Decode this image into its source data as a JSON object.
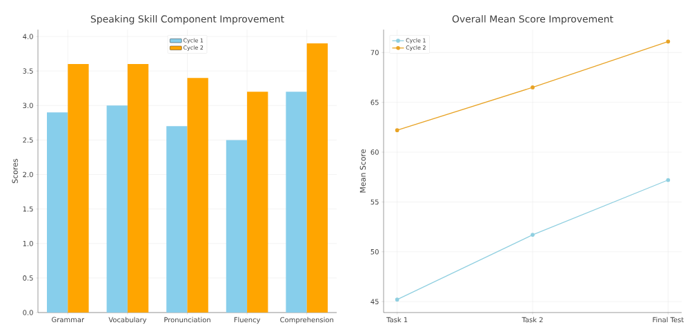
{
  "chart_data": [
    {
      "type": "bar",
      "title": "Speaking Skill Component Improvement",
      "ylabel": "Scores",
      "categories": [
        "Grammar",
        "Vocabulary",
        "Pronunciation",
        "Fluency",
        "Comprehension"
      ],
      "series": [
        {
          "name": "Cycle 1",
          "color": "#87ceeb",
          "values": [
            2.9,
            3.0,
            2.7,
            2.5,
            3.2
          ]
        },
        {
          "name": "Cycle 2",
          "color": "#ffa500",
          "values": [
            3.6,
            3.6,
            3.4,
            3.2,
            3.9
          ]
        }
      ],
      "ylim": [
        0,
        4.1
      ],
      "yticks": [
        {
          "value": 0,
          "label": "0.0"
        },
        0.5,
        {
          "value": 1,
          "label": "1.0"
        },
        1.5,
        {
          "value": 2,
          "label": "2.0"
        },
        2.5,
        {
          "value": 3,
          "label": "3.0"
        },
        3.5,
        {
          "value": 4,
          "label": "4.0"
        }
      ],
      "grid": true,
      "legend": "top"
    },
    {
      "type": "line",
      "title": "Overall Mean Score Improvement",
      "ylabel": "Mean Score",
      "categories": [
        "Task 1",
        "Task 2",
        "Final Test"
      ],
      "series": [
        {
          "name": "Cycle 1",
          "color": "#8fcfe0",
          "values": [
            45.2,
            51.7,
            57.2
          ]
        },
        {
          "name": "Cycle 2",
          "color": "#e8a325",
          "values": [
            62.2,
            66.5,
            71.1
          ]
        }
      ],
      "ylim": [
        43.9,
        72.3
      ],
      "yticks": [
        45,
        50,
        55,
        60,
        65,
        70
      ],
      "grid": true,
      "legend": "top left",
      "marker": "circle",
      "line_style": "solid"
    }
  ]
}
